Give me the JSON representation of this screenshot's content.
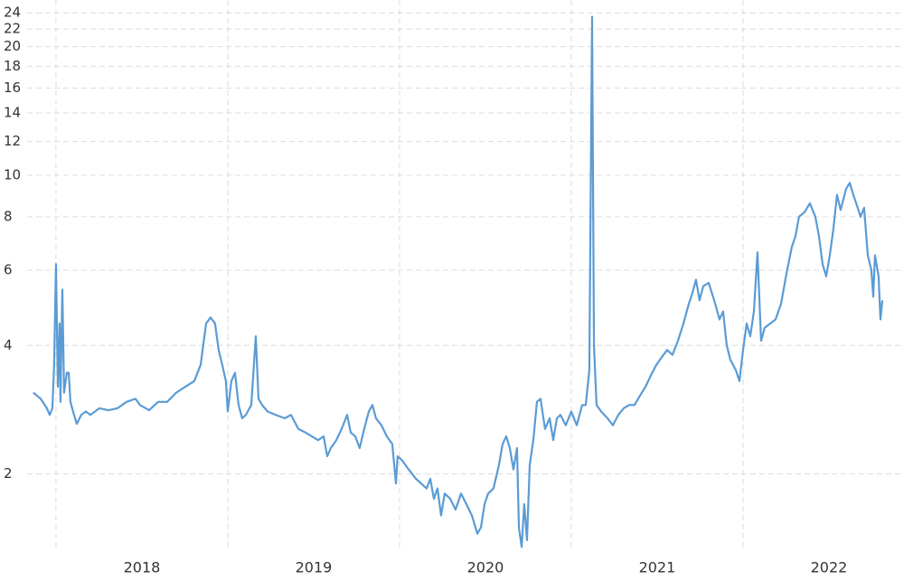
{
  "chart_data": {
    "type": "line",
    "yscale": "log",
    "grid": true,
    "color": "#5b9bd5",
    "xlim": [
      2017.674,
      2022.937
    ],
    "ylim": [
      1.32,
      24.5
    ],
    "yticks": [
      2,
      4,
      6,
      8,
      10,
      12,
      14,
      16,
      18,
      20,
      22,
      24
    ],
    "xticks": [
      {
        "value": 2018.5,
        "label": "2018"
      },
      {
        "value": 2019.5,
        "label": "2019"
      },
      {
        "value": 2020.5,
        "label": "2020"
      },
      {
        "value": 2021.5,
        "label": "2021"
      },
      {
        "value": 2022.5,
        "label": "2022"
      }
    ],
    "xgrid": [
      2018,
      2019,
      2020,
      2021,
      2022
    ],
    "x": [
      2017.868,
      2017.911,
      2017.947,
      2017.963,
      2017.979,
      2017.989,
      2018.0,
      2018.011,
      2018.021,
      2018.026,
      2018.037,
      2018.047,
      2018.063,
      2018.074,
      2018.084,
      2018.105,
      2018.121,
      2018.147,
      2018.174,
      2018.2,
      2018.253,
      2018.305,
      2018.358,
      2018.411,
      2018.463,
      2018.489,
      2018.542,
      2018.595,
      2018.647,
      2018.7,
      2018.753,
      2018.805,
      2018.842,
      2018.874,
      2018.9,
      2018.926,
      2018.947,
      2018.968,
      2018.989,
      2019.0,
      2019.021,
      2019.042,
      2019.063,
      2019.084,
      2019.105,
      2019.137,
      2019.163,
      2019.179,
      2019.2,
      2019.232,
      2019.279,
      2019.332,
      2019.368,
      2019.411,
      2019.453,
      2019.489,
      2019.526,
      2019.558,
      2019.579,
      2019.6,
      2019.632,
      2019.663,
      2019.695,
      2019.716,
      2019.742,
      2019.768,
      2019.789,
      2019.821,
      2019.842,
      2019.863,
      2019.895,
      2019.926,
      2019.958,
      2019.979,
      2019.989,
      2020.016,
      2020.053,
      2020.095,
      2020.126,
      2020.158,
      2020.179,
      2020.2,
      2020.221,
      2020.242,
      2020.263,
      2020.295,
      2020.326,
      2020.358,
      2020.389,
      2020.421,
      2020.453,
      2020.474,
      2020.495,
      2020.516,
      2020.547,
      2020.579,
      2020.6,
      2020.621,
      2020.642,
      2020.663,
      2020.684,
      2020.695,
      2020.711,
      2020.726,
      2020.742,
      2020.758,
      2020.779,
      2020.8,
      2020.821,
      2020.847,
      2020.874,
      2020.895,
      2020.916,
      2020.937,
      2020.968,
      2021.0,
      2021.032,
      2021.063,
      2021.084,
      2021.105,
      2021.121,
      2021.132,
      2021.147,
      2021.174,
      2021.211,
      2021.242,
      2021.274,
      2021.305,
      2021.337,
      2021.368,
      2021.4,
      2021.432,
      2021.463,
      2021.495,
      2021.526,
      2021.558,
      2021.589,
      2021.621,
      2021.653,
      2021.684,
      2021.705,
      2021.726,
      2021.747,
      2021.768,
      2021.8,
      2021.832,
      2021.863,
      2021.884,
      2021.905,
      2021.926,
      2021.958,
      2021.979,
      2022.0,
      2022.021,
      2022.042,
      2022.063,
      2022.084,
      2022.105,
      2022.126,
      2022.158,
      2022.189,
      2022.221,
      2022.253,
      2022.284,
      2022.305,
      2022.326,
      2022.358,
      2022.389,
      2022.421,
      2022.442,
      2022.463,
      2022.484,
      2022.505,
      2022.526,
      2022.547,
      2022.568,
      2022.6,
      2022.621,
      2022.642,
      2022.663,
      2022.684,
      2022.705,
      2022.726,
      2022.747,
      2022.758,
      2022.768,
      2022.789,
      2022.8,
      2022.811
    ],
    "values": [
      3.1,
      3.0,
      2.85,
      2.75,
      2.85,
      3.6,
      6.2,
      3.2,
      4.5,
      2.95,
      5.4,
      3.1,
      3.45,
      3.45,
      2.95,
      2.75,
      2.62,
      2.75,
      2.8,
      2.75,
      2.85,
      2.82,
      2.85,
      2.95,
      3.0,
      2.9,
      2.82,
      2.95,
      2.95,
      3.1,
      3.2,
      3.3,
      3.6,
      4.5,
      4.65,
      4.5,
      3.9,
      3.6,
      3.3,
      2.8,
      3.3,
      3.45,
      2.9,
      2.7,
      2.75,
      2.9,
      4.2,
      3.0,
      2.9,
      2.8,
      2.75,
      2.7,
      2.75,
      2.55,
      2.5,
      2.45,
      2.4,
      2.45,
      2.2,
      2.3,
      2.4,
      2.55,
      2.75,
      2.5,
      2.45,
      2.3,
      2.5,
      2.8,
      2.9,
      2.7,
      2.6,
      2.45,
      2.35,
      1.9,
      2.2,
      2.15,
      2.05,
      1.95,
      1.9,
      1.85,
      1.95,
      1.75,
      1.85,
      1.6,
      1.8,
      1.75,
      1.65,
      1.8,
      1.7,
      1.6,
      1.45,
      1.5,
      1.7,
      1.8,
      1.85,
      2.1,
      2.35,
      2.45,
      2.3,
      2.05,
      2.3,
      1.5,
      1.35,
      1.7,
      1.4,
      2.1,
      2.4,
      2.95,
      3.0,
      2.55,
      2.7,
      2.4,
      2.7,
      2.75,
      2.6,
      2.8,
      2.6,
      2.9,
      2.9,
      3.5,
      23.5,
      4.0,
      2.9,
      2.8,
      2.7,
      2.6,
      2.75,
      2.85,
      2.9,
      2.9,
      3.05,
      3.2,
      3.4,
      3.6,
      3.75,
      3.9,
      3.8,
      4.1,
      4.5,
      5.0,
      5.3,
      5.7,
      5.1,
      5.5,
      5.6,
      5.1,
      4.6,
      4.8,
      4.0,
      3.7,
      3.5,
      3.3,
      3.9,
      4.5,
      4.2,
      4.8,
      6.6,
      4.1,
      4.4,
      4.5,
      4.6,
      5.0,
      5.9,
      6.8,
      7.2,
      8.0,
      8.2,
      8.6,
      8.0,
      7.2,
      6.2,
      5.8,
      6.5,
      7.5,
      9.0,
      8.3,
      9.3,
      9.6,
      9.0,
      8.5,
      8.0,
      8.4,
      6.5,
      6.0,
      5.2,
      6.5,
      5.8,
      4.6,
      5.1
    ]
  }
}
